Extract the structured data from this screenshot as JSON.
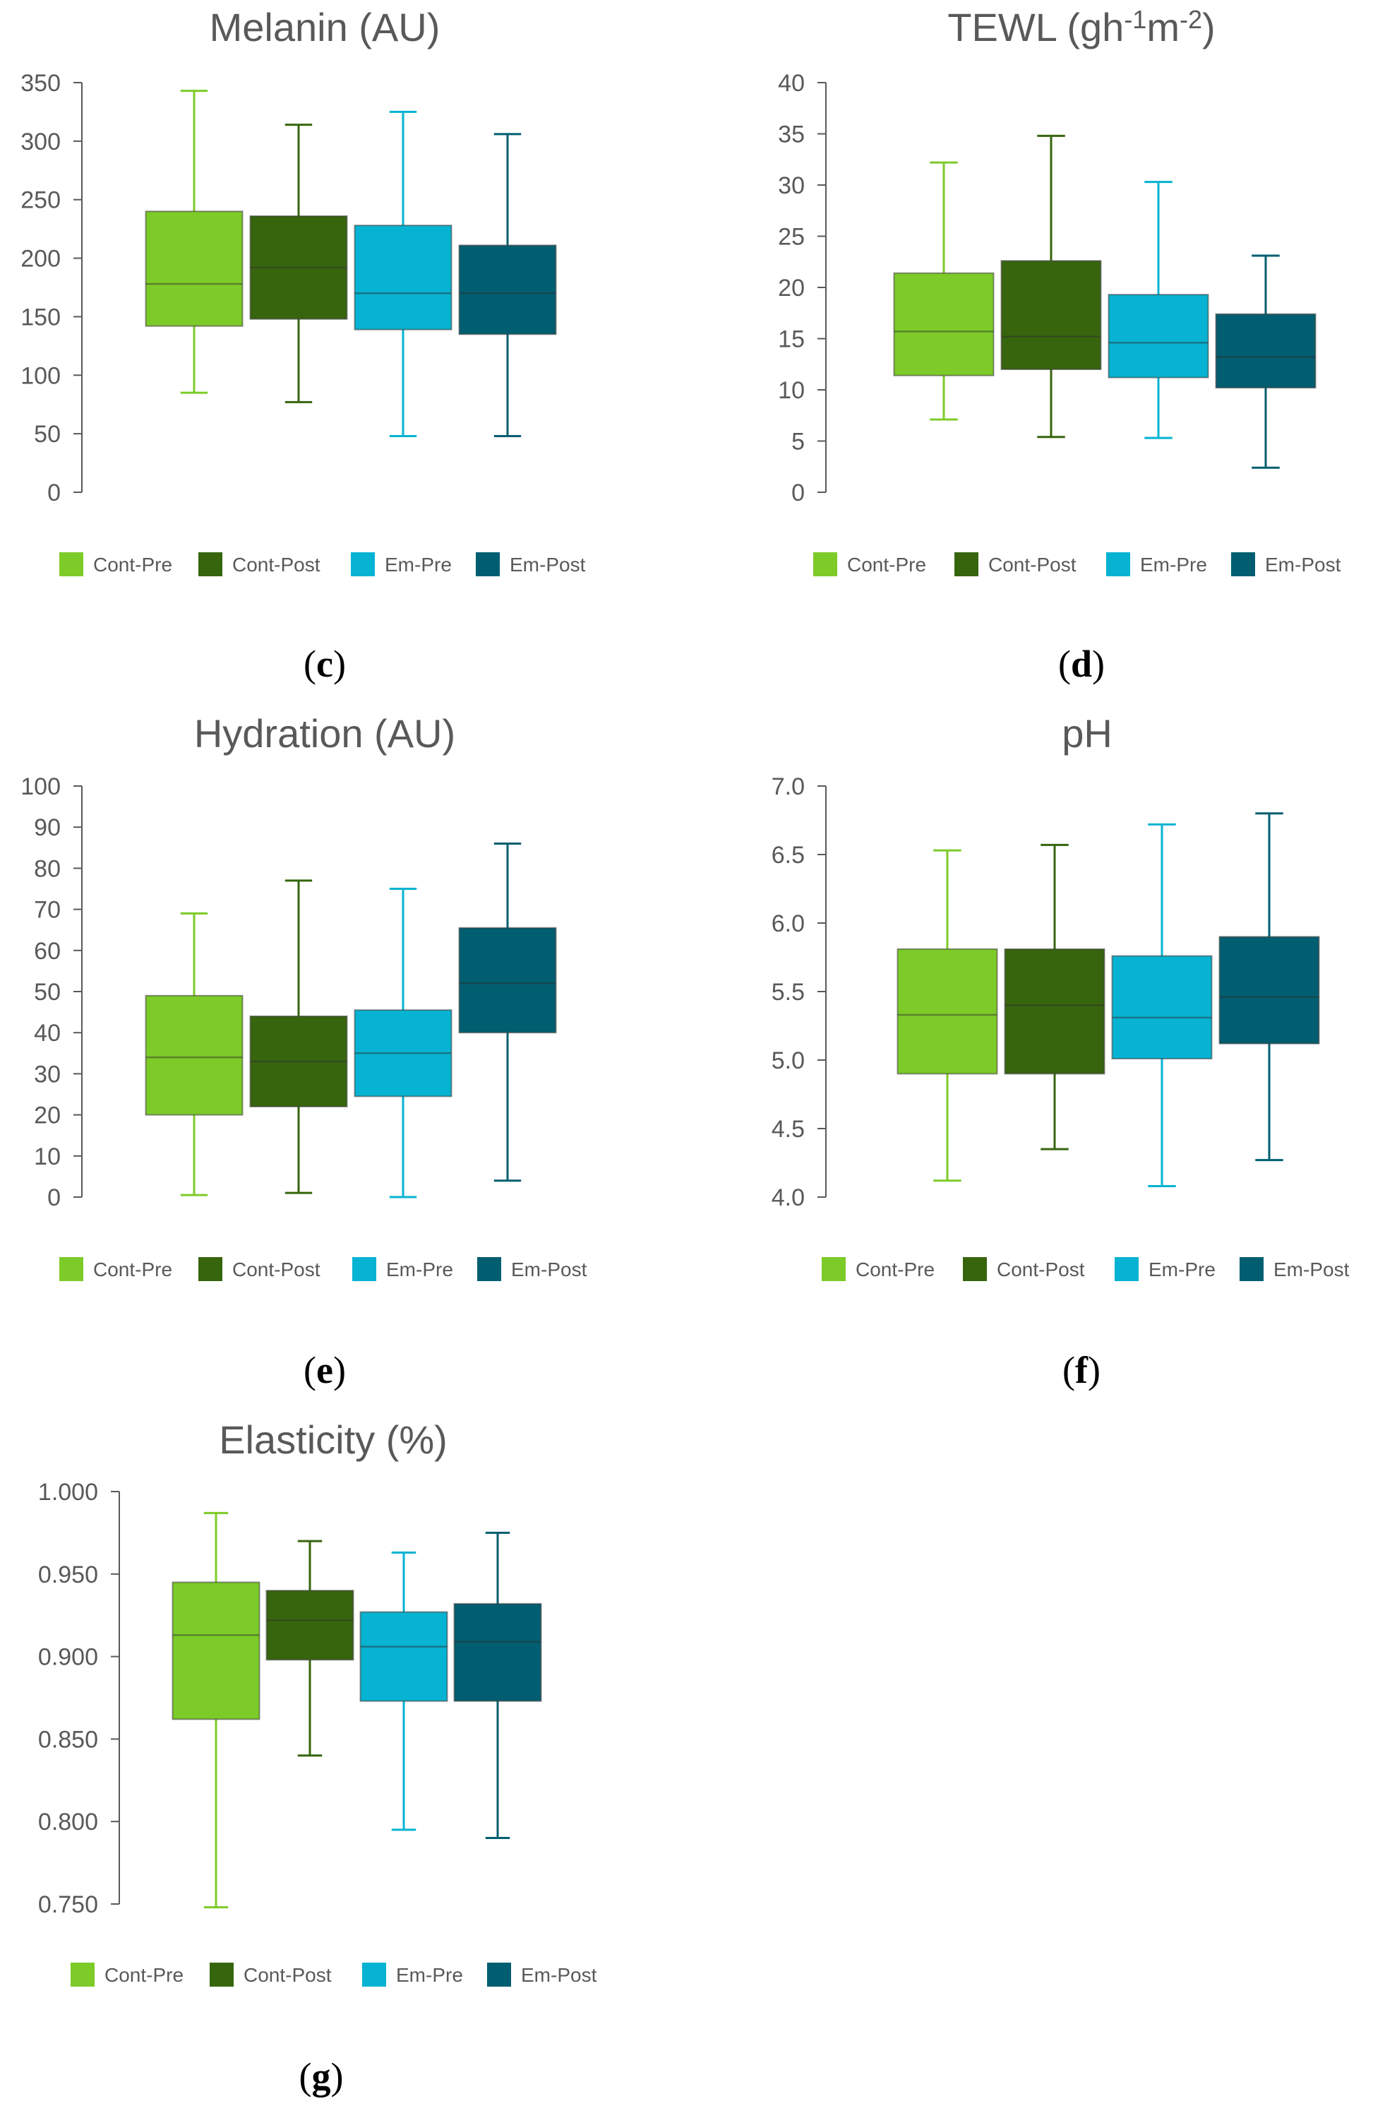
{
  "series_names": [
    "Cont-Pre",
    "Cont-Post",
    "Em-Pre",
    "Em-Post"
  ],
  "colors": {
    "Cont-Pre": "#7DCB28",
    "Cont-Post": "#37650E",
    "Em-Pre": "#06B3D2",
    "Em-Post": "#005E70",
    "text": "#595959"
  },
  "chart_data": [
    {
      "id": "c",
      "type": "boxplot",
      "title": "Melanin (AU)",
      "panel_label": "(c)",
      "panel_letter": "c",
      "ylim": [
        0,
        350
      ],
      "yticks": [
        0,
        50,
        100,
        150,
        200,
        250,
        300,
        350
      ],
      "ytick_labels": [
        "0",
        "50",
        "100",
        "150",
        "200",
        "250",
        "300",
        "350"
      ],
      "series": [
        {
          "name": "Cont-Pre",
          "min": 85,
          "q1": 142,
          "median": 178,
          "q3": 240,
          "max": 343
        },
        {
          "name": "Cont-Post",
          "min": 77,
          "q1": 148,
          "median": 192,
          "q3": 236,
          "max": 314
        },
        {
          "name": "Em-Pre",
          "min": 48,
          "q1": 139,
          "median": 170,
          "q3": 228,
          "max": 325
        },
        {
          "name": "Em-Post",
          "min": 48,
          "q1": 135,
          "median": 170,
          "q3": 211,
          "max": 306
        }
      ]
    },
    {
      "id": "d",
      "type": "boxplot",
      "title": "TEWL (gh",
      "title_sup1": "-1",
      "title_mid": "m",
      "title_sup2": "-2",
      "title_end": ")",
      "panel_label": "(d)",
      "panel_letter": "d",
      "ylim": [
        0,
        40
      ],
      "yticks": [
        0,
        5,
        10,
        15,
        20,
        25,
        30,
        35,
        40
      ],
      "ytick_labels": [
        "0",
        "5",
        "10",
        "15",
        "20",
        "25",
        "30",
        "35",
        "40"
      ],
      "series": [
        {
          "name": "Cont-Pre",
          "min": 7.1,
          "q1": 11.4,
          "median": 15.7,
          "q3": 21.4,
          "max": 32.2
        },
        {
          "name": "Cont-Post",
          "min": 5.4,
          "q1": 12.0,
          "median": 15.2,
          "q3": 22.6,
          "max": 34.8
        },
        {
          "name": "Em-Pre",
          "min": 5.3,
          "q1": 11.2,
          "median": 14.6,
          "q3": 19.3,
          "max": 30.3
        },
        {
          "name": "Em-Post",
          "min": 2.4,
          "q1": 10.2,
          "median": 13.2,
          "q3": 17.4,
          "max": 23.1
        }
      ]
    },
    {
      "id": "e",
      "type": "boxplot",
      "title": "Hydration (AU)",
      "panel_label": "(e)",
      "panel_letter": "e",
      "ylim": [
        0,
        100
      ],
      "yticks": [
        0,
        10,
        20,
        30,
        40,
        50,
        60,
        70,
        80,
        90,
        100
      ],
      "ytick_labels": [
        "0",
        "10",
        "20",
        "30",
        "40",
        "50",
        "60",
        "70",
        "80",
        "90",
        "100"
      ],
      "series": [
        {
          "name": "Cont-Pre",
          "min": 0.5,
          "q1": 20.0,
          "median": 34.0,
          "q3": 49.0,
          "max": 69.0
        },
        {
          "name": "Cont-Post",
          "min": 1.0,
          "q1": 22.0,
          "median": 33.0,
          "q3": 44.0,
          "max": 77.0
        },
        {
          "name": "Em-Pre",
          "min": 0.0,
          "q1": 24.5,
          "median": 35.0,
          "q3": 45.5,
          "max": 75.0
        },
        {
          "name": "Em-Post",
          "min": 4.0,
          "q1": 40.0,
          "median": 52.0,
          "q3": 65.5,
          "max": 86.0
        }
      ]
    },
    {
      "id": "f",
      "type": "boxplot",
      "title": "pH",
      "panel_label": "(f)",
      "panel_letter": "f",
      "ylim": [
        4.0,
        7.0
      ],
      "yticks": [
        4.0,
        4.5,
        5.0,
        5.5,
        6.0,
        6.5,
        7.0
      ],
      "ytick_labels": [
        "4.0",
        "4.5",
        "5.0",
        "5.5",
        "6.0",
        "6.5",
        "7.0"
      ],
      "series": [
        {
          "name": "Cont-Pre",
          "min": 4.12,
          "q1": 4.9,
          "median": 5.33,
          "q3": 5.81,
          "max": 6.53
        },
        {
          "name": "Cont-Post",
          "min": 4.35,
          "q1": 4.9,
          "median": 5.4,
          "q3": 5.81,
          "max": 6.57
        },
        {
          "name": "Em-Pre",
          "min": 4.08,
          "q1": 5.01,
          "median": 5.31,
          "q3": 5.76,
          "max": 6.72
        },
        {
          "name": "Em-Post",
          "min": 4.27,
          "q1": 5.12,
          "median": 5.46,
          "q3": 5.9,
          "max": 6.8
        }
      ]
    },
    {
      "id": "g",
      "type": "boxplot",
      "title": "Elasticity (%)",
      "panel_label": "(g)",
      "panel_letter": "g",
      "ylim": [
        0.75,
        1.0
      ],
      "yticks": [
        0.75,
        0.8,
        0.85,
        0.9,
        0.95,
        1.0
      ],
      "ytick_labels": [
        "0.750",
        "0.800",
        "0.850",
        "0.900",
        "0.950",
        "1.000"
      ],
      "series": [
        {
          "name": "Cont-Pre",
          "min": 0.748,
          "q1": 0.862,
          "median": 0.913,
          "q3": 0.945,
          "max": 0.987
        },
        {
          "name": "Cont-Post",
          "min": 0.84,
          "q1": 0.898,
          "median": 0.922,
          "q3": 0.94,
          "max": 0.97
        },
        {
          "name": "Em-Pre",
          "min": 0.795,
          "q1": 0.873,
          "median": 0.906,
          "q3": 0.927,
          "max": 0.963
        },
        {
          "name": "Em-Post",
          "min": 0.79,
          "q1": 0.873,
          "median": 0.909,
          "q3": 0.932,
          "max": 0.975
        }
      ]
    }
  ]
}
